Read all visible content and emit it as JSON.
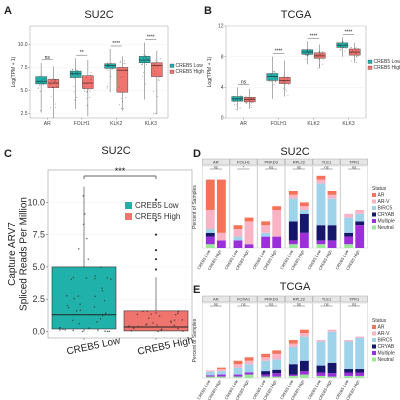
{
  "colors": {
    "low": "#20b2aa",
    "high": "#f0746e",
    "dot": "#333333",
    "status": {
      "AR": "#f47258",
      "AR-V": "#f8b4c4",
      "BIRC5": "#9ed3ea",
      "CRYAB": "#16166b",
      "Multiple": "#9b30d9",
      "Neutral": "#9be89b"
    }
  },
  "charts": [
    {
      "id": "A",
      "letter": "A",
      "type": "box",
      "title": "SU2C",
      "ylabel": "Log(TPM + 1)",
      "ylim": [
        2,
        12
      ],
      "yticks": [
        2.5,
        5.0,
        7.5,
        10.0
      ],
      "ytick_labels": [
        "2.5",
        "5.0",
        "7.5",
        "10.0"
      ],
      "categories": [
        "AR",
        "FOLH1",
        "KLK2",
        "KLK3"
      ],
      "legend": [
        "CREB5 Low",
        "CREB5 High"
      ],
      "significance": [
        "ns",
        "**",
        "****",
        "****"
      ],
      "series": [
        {
          "name": "CREB5 Low",
          "boxes": [
            {
              "min": 2.6,
              "q1": 5.7,
              "median": 6.0,
              "q3": 6.5,
              "max": 8.0
            },
            {
              "min": 3.0,
              "q1": 6.4,
              "median": 6.8,
              "q3": 7.1,
              "max": 8.5
            },
            {
              "min": 4.8,
              "q1": 7.4,
              "median": 7.7,
              "q3": 7.9,
              "max": 9.5
            },
            {
              "min": 4.0,
              "q1": 8.0,
              "median": 8.3,
              "q3": 8.7,
              "max": 10.2
            }
          ]
        },
        {
          "name": "CREB5 High",
          "boxes": [
            {
              "min": 2.0,
              "q1": 5.3,
              "median": 5.8,
              "q3": 6.2,
              "max": 7.6
            },
            {
              "min": 2.2,
              "q1": 5.2,
              "median": 5.8,
              "q3": 6.6,
              "max": 8.3
            },
            {
              "min": 2.8,
              "q1": 4.8,
              "median": 7.2,
              "q3": 7.5,
              "max": 8.7
            },
            {
              "min": 2.4,
              "q1": 6.5,
              "median": 7.7,
              "q3": 8.0,
              "max": 9.3
            }
          ]
        }
      ]
    },
    {
      "id": "B",
      "letter": "B",
      "type": "box",
      "title": "TCGA",
      "ylabel": "Log(TPM + 1)",
      "ylim": [
        0,
        12
      ],
      "yticks": [
        0,
        4,
        8,
        12
      ],
      "ytick_labels": [
        "0",
        "4",
        "8",
        "12"
      ],
      "categories": [
        "AR",
        "FOLH1",
        "KLK2",
        "KLK3"
      ],
      "legend": [
        "CREB5 Low",
        "CREB5 High"
      ],
      "significance": [
        "ns",
        "****",
        "****",
        "****"
      ],
      "series": [
        {
          "name": "CREB5 Low",
          "boxes": [
            {
              "min": 1.0,
              "q1": 2.2,
              "median": 2.5,
              "q3": 2.8,
              "max": 4.0
            },
            {
              "min": 2.5,
              "q1": 4.9,
              "median": 5.4,
              "q3": 5.8,
              "max": 8.0
            },
            {
              "min": 7.0,
              "q1": 8.3,
              "median": 8.6,
              "q3": 8.9,
              "max": 10.0
            },
            {
              "min": 8.0,
              "q1": 9.2,
              "median": 9.5,
              "q3": 9.8,
              "max": 10.5
            }
          ]
        },
        {
          "name": "CREB5 High",
          "boxes": [
            {
              "min": 1.2,
              "q1": 2.1,
              "median": 2.4,
              "q3": 2.7,
              "max": 3.8
            },
            {
              "min": 2.8,
              "q1": 4.5,
              "median": 4.9,
              "q3": 5.3,
              "max": 7.5
            },
            {
              "min": 6.5,
              "q1": 7.8,
              "median": 8.1,
              "q3": 8.5,
              "max": 9.6
            },
            {
              "min": 7.2,
              "q1": 8.2,
              "median": 8.6,
              "q3": 9.0,
              "max": 9.8
            }
          ]
        }
      ]
    },
    {
      "id": "C",
      "letter": "C",
      "type": "box",
      "title": "SU2C",
      "ylabel": "Capture ARV7 Spliced Reads Per Million",
      "ylabel_lines": [
        "Capture ARV7",
        "Spliced Reads Per Million"
      ],
      "ylim": [
        -0.5,
        12.5
      ],
      "yticks": [
        0.0,
        2.5,
        5.0,
        7.5,
        10.0
      ],
      "ytick_labels": [
        "0.0",
        "2.5",
        "5.0",
        "7.5",
        "10.0"
      ],
      "categories": [
        "CREB5 Low",
        "CREB5 High"
      ],
      "legend": [
        "CREB5 Low",
        "CREB5 High"
      ],
      "significance": [
        "***"
      ],
      "boxes": [
        {
          "name": "CREB5 Low",
          "min": 0.0,
          "q1": 0.2,
          "median": 1.3,
          "q3": 5.0,
          "max": 11.2
        },
        {
          "name": "CREB5 High",
          "min": 0.0,
          "q1": 0.05,
          "median": 0.35,
          "q3": 1.6,
          "max": 4.2
        }
      ],
      "outliers": [
        {
          "group": 1,
          "y": 4.8
        },
        {
          "group": 1,
          "y": 5.6
        },
        {
          "group": 1,
          "y": 6.3
        },
        {
          "group": 1,
          "y": 7.5
        },
        {
          "group": 1,
          "y": 8.6
        },
        {
          "group": 1,
          "y": 10.2
        }
      ]
    },
    {
      "id": "D",
      "letter": "D",
      "type": "stacked-bar",
      "title": "SU2C",
      "ylabel": "Percent of Samples",
      "genes": [
        "AR",
        "FOLH1",
        "PRKD3",
        "RPL22",
        "TLE1",
        "TPR1"
      ],
      "significance": [
        "ns",
        "*",
        "ns",
        "ns",
        "ns",
        "ns"
      ],
      "groups": [
        "CREB5 Low",
        "CREB5 High"
      ],
      "legend_title": "Status",
      "legend": [
        "AR",
        "AR-V",
        "BIRC5",
        "CRYAB",
        "Multiple",
        "Neutral"
      ],
      "bars": [
        [
          [
            0.4,
            0.25,
            0.05,
            0.05,
            0.1,
            0.05
          ],
          [
            0.7,
            0.1,
            0.0,
            0.0,
            0.1,
            0.0
          ]
        ],
        [
          [
            0.05,
            0.1,
            0.05,
            0.0,
            0.1,
            0.0
          ],
          [
            0.05,
            0.3,
            0.0,
            0.0,
            0.05,
            0.0
          ]
        ],
        [
          [
            0.05,
            0.1,
            0.05,
            0.0,
            0.15,
            0.0
          ],
          [
            0.05,
            0.35,
            0.0,
            0.0,
            0.15,
            0.0
          ]
        ],
        [
          [
            0.05,
            0.05,
            0.3,
            0.25,
            0.05,
            0.05
          ],
          [
            0.05,
            0.05,
            0.05,
            0.25,
            0.2,
            0.0
          ]
        ],
        [
          [
            0.05,
            0.05,
            0.55,
            0.2,
            0.05,
            0.05
          ],
          [
            0.05,
            0.05,
            0.35,
            0.2,
            0.1,
            0.0
          ]
        ],
        [
          [
            0.0,
            0.05,
            0.2,
            0.05,
            0.1,
            0.05
          ],
          [
            0.0,
            0.05,
            0.1,
            0.05,
            0.3,
            0.0
          ]
        ]
      ]
    },
    {
      "id": "E",
      "letter": "E",
      "type": "stacked-bar",
      "title": "TCGA",
      "ylabel": "Percent of Samples",
      "genes": [
        "AR",
        "FOXA1",
        "PRKD3",
        "RPL22",
        "TLE1",
        "TPR1"
      ],
      "significance": [
        "ns",
        "ns",
        "ns",
        "ns",
        "ns",
        "ns"
      ],
      "groups": [
        "CREB5 Low",
        "CREB5 High"
      ],
      "legend_title": "Status",
      "legend": [
        "AR",
        "AR-V",
        "BIRC5",
        "CRYAB",
        "Multiple",
        "Neutral"
      ],
      "bars": [
        [
          [
            0.0,
            0.02,
            0.05,
            0.0,
            0.02,
            0.02
          ],
          [
            0.02,
            0.03,
            0.05,
            0.0,
            0.03,
            0.02
          ]
        ],
        [
          [
            0.05,
            0.05,
            0.1,
            0.0,
            0.03,
            0.02
          ],
          [
            0.05,
            0.05,
            0.12,
            0.0,
            0.03,
            0.05
          ]
        ],
        [
          [
            0.05,
            0.05,
            0.15,
            0.05,
            0.03,
            0.02
          ],
          [
            0.05,
            0.08,
            0.15,
            0.05,
            0.05,
            0.02
          ]
        ],
        [
          [
            0.05,
            0.05,
            0.25,
            0.15,
            0.02,
            0.03
          ],
          [
            0.05,
            0.05,
            0.35,
            0.15,
            0.05,
            0.05
          ]
        ],
        [
          [
            0.0,
            0.02,
            0.35,
            0.1,
            0.05,
            0.03
          ],
          [
            0.0,
            0.03,
            0.45,
            0.15,
            0.05,
            0.02
          ]
        ],
        [
          [
            0.0,
            0.02,
            0.4,
            0.05,
            0.05,
            0.03
          ],
          [
            0.0,
            0.02,
            0.45,
            0.05,
            0.05,
            0.03
          ]
        ]
      ]
    }
  ]
}
